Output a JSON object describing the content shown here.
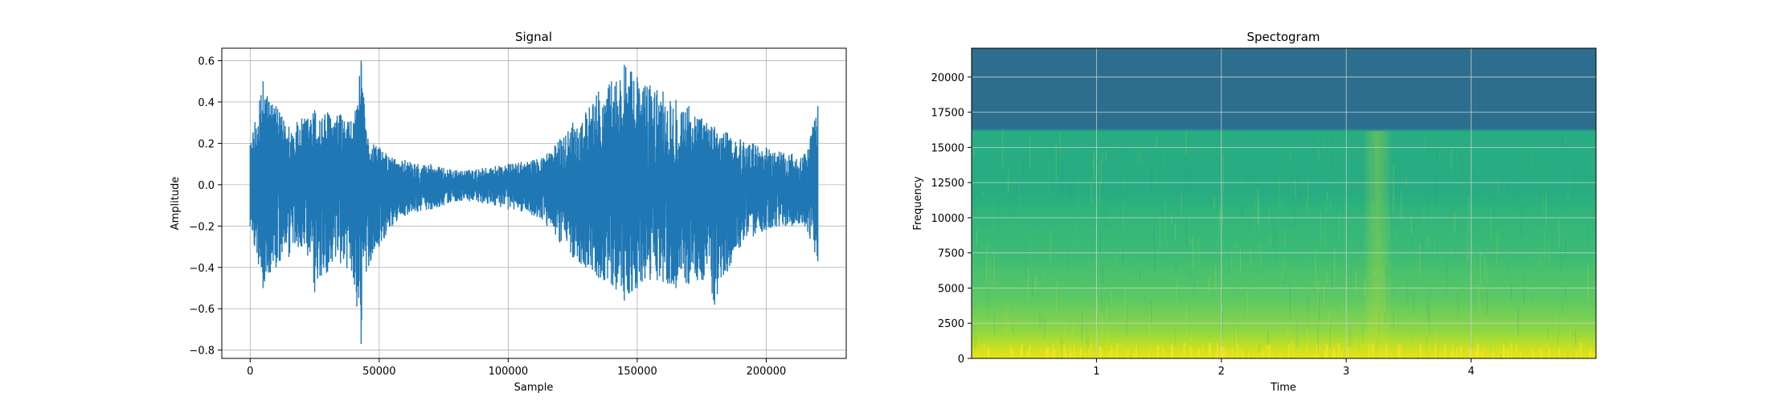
{
  "chart_data": [
    {
      "type": "line",
      "title": "Signal",
      "xlabel": "Sample",
      "ylabel": "Amplitude",
      "xlim": [
        -11000,
        231000
      ],
      "ylim": [
        -0.84,
        0.66
      ],
      "xticks": [
        0,
        50000,
        100000,
        150000,
        200000
      ],
      "xtick_labels": [
        "0",
        "50000",
        "100000",
        "150000",
        "200000"
      ],
      "yticks": [
        -0.8,
        -0.6,
        -0.4,
        -0.2,
        0.0,
        0.2,
        0.4,
        0.6
      ],
      "ytick_labels": [
        "−0.8",
        "−0.6",
        "−0.4",
        "−0.2",
        "0.0",
        "0.2",
        "0.4",
        "0.6"
      ],
      "grid": true,
      "color": "#1f77b4",
      "series": [
        {
          "x": [
            0,
            5000,
            10000,
            15000,
            20000,
            25000,
            30000,
            35000,
            40000,
            43000,
            45000,
            50000,
            55000,
            60000,
            65000,
            70000,
            75000,
            80000,
            85000,
            90000,
            95000,
            100000,
            105000,
            110000,
            115000,
            120000,
            125000,
            130000,
            135000,
            140000,
            145000,
            150000,
            155000,
            160000,
            165000,
            170000,
            175000,
            180000,
            185000,
            190000,
            195000,
            200000,
            205000,
            210000,
            215000,
            220000
          ],
          "upper": [
            0.19,
            0.5,
            0.38,
            0.28,
            0.32,
            0.36,
            0.35,
            0.34,
            0.3,
            0.6,
            0.25,
            0.18,
            0.13,
            0.12,
            0.1,
            0.1,
            0.08,
            0.07,
            0.07,
            0.08,
            0.09,
            0.1,
            0.11,
            0.12,
            0.15,
            0.22,
            0.3,
            0.35,
            0.45,
            0.5,
            0.58,
            0.52,
            0.48,
            0.45,
            0.41,
            0.38,
            0.32,
            0.28,
            0.25,
            0.22,
            0.2,
            0.18,
            0.16,
            0.15,
            0.15,
            0.38
          ],
          "lower": [
            -0.2,
            -0.5,
            -0.4,
            -0.35,
            -0.3,
            -0.52,
            -0.42,
            -0.38,
            -0.45,
            -0.77,
            -0.42,
            -0.3,
            -0.2,
            -0.15,
            -0.13,
            -0.12,
            -0.1,
            -0.08,
            -0.08,
            -0.09,
            -0.1,
            -0.12,
            -0.13,
            -0.15,
            -0.2,
            -0.28,
            -0.35,
            -0.4,
            -0.45,
            -0.48,
            -0.56,
            -0.5,
            -0.46,
            -0.47,
            -0.5,
            -0.48,
            -0.46,
            -0.58,
            -0.42,
            -0.3,
            -0.25,
            -0.22,
            -0.2,
            -0.2,
            -0.2,
            -0.37
          ]
        }
      ]
    },
    {
      "type": "heatmap",
      "title": "Spectogram",
      "xlabel": "Time",
      "ylabel": "Frequency",
      "xlim": [
        0,
        5.0
      ],
      "ylim": [
        0,
        22050
      ],
      "xticks": [
        1,
        2,
        3,
        4
      ],
      "xtick_labels": [
        "1",
        "2",
        "3",
        "4"
      ],
      "yticks": [
        0,
        2500,
        5000,
        7500,
        10000,
        12500,
        15000,
        17500,
        20000
      ],
      "ytick_labels": [
        "0",
        "2500",
        "5000",
        "7500",
        "10000",
        "12500",
        "15000",
        "17500",
        "20000"
      ],
      "grid": true,
      "colormap": "viridis",
      "cutoff_frequency": 16200,
      "bright_time_band": 3.25,
      "colors": {
        "above_cutoff": "#2d6e8e",
        "high_band": "#27a67f",
        "mid_band": "#3fbf73",
        "low_band": "#a8db34",
        "lowest_band": "#e8e419"
      }
    }
  ]
}
